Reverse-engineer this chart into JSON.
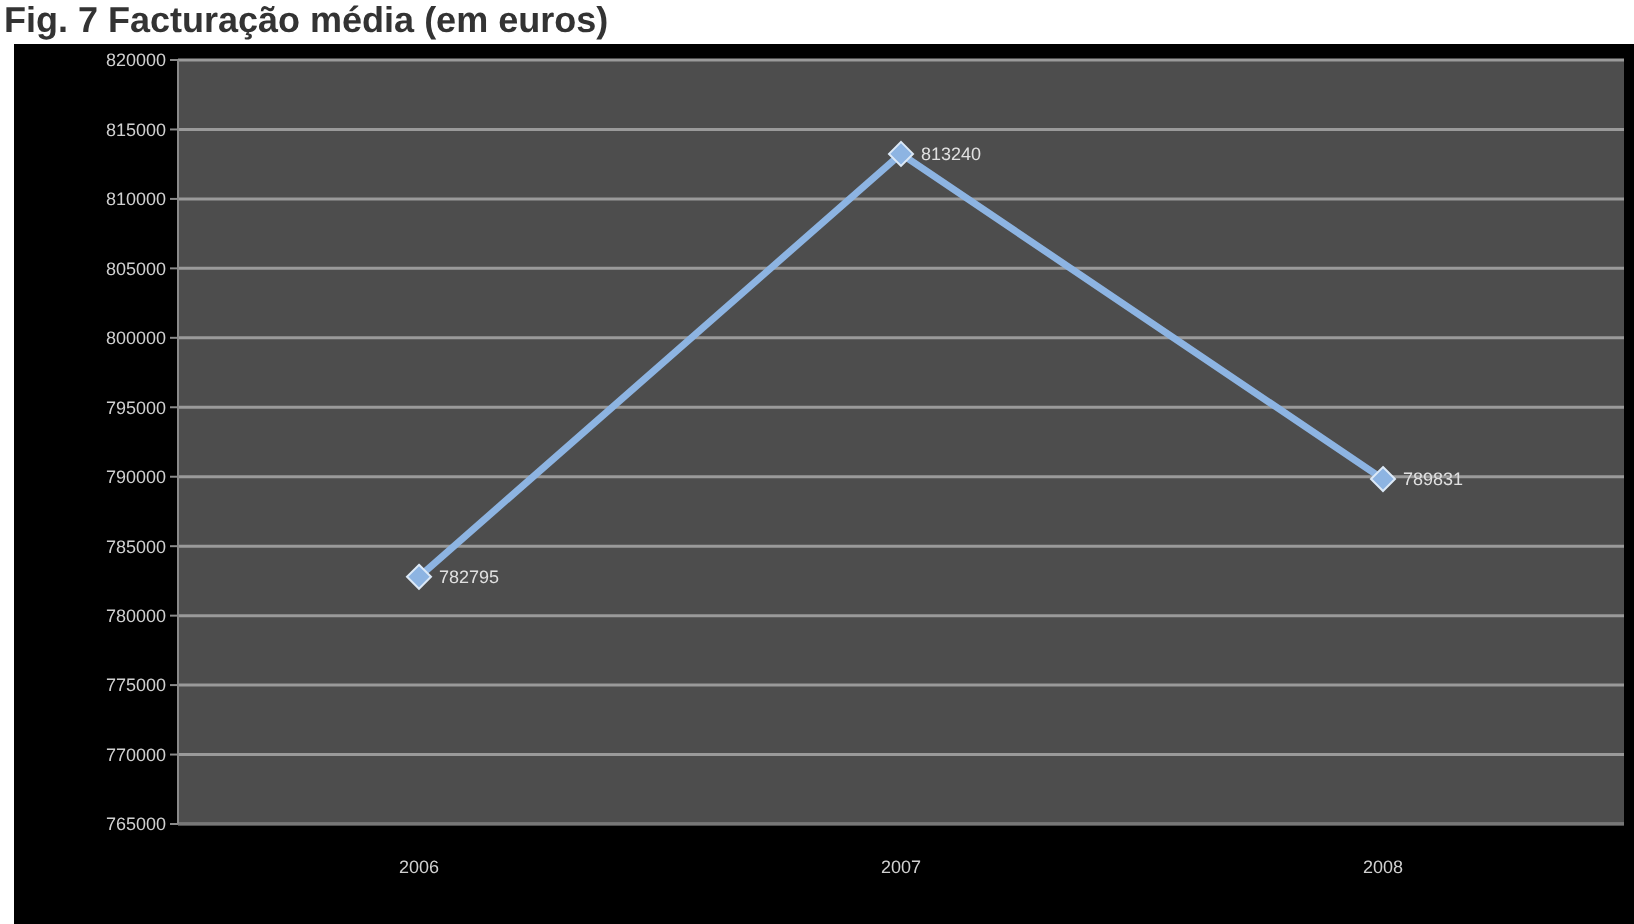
{
  "chart_data": {
    "type": "line",
    "title": "Fig. 7 Facturação média (em euros)",
    "categories": [
      "2006",
      "2007",
      "2008"
    ],
    "values": [
      782795,
      813240,
      789831
    ],
    "color": "#8db4e2",
    "ylim": [
      765000,
      820000
    ],
    "yticks": [
      765000,
      770000,
      775000,
      780000,
      785000,
      790000,
      795000,
      800000,
      805000,
      810000,
      815000,
      820000
    ],
    "grid": "y",
    "marker": "diamond",
    "line_style": "solid",
    "data_labels": true
  }
}
